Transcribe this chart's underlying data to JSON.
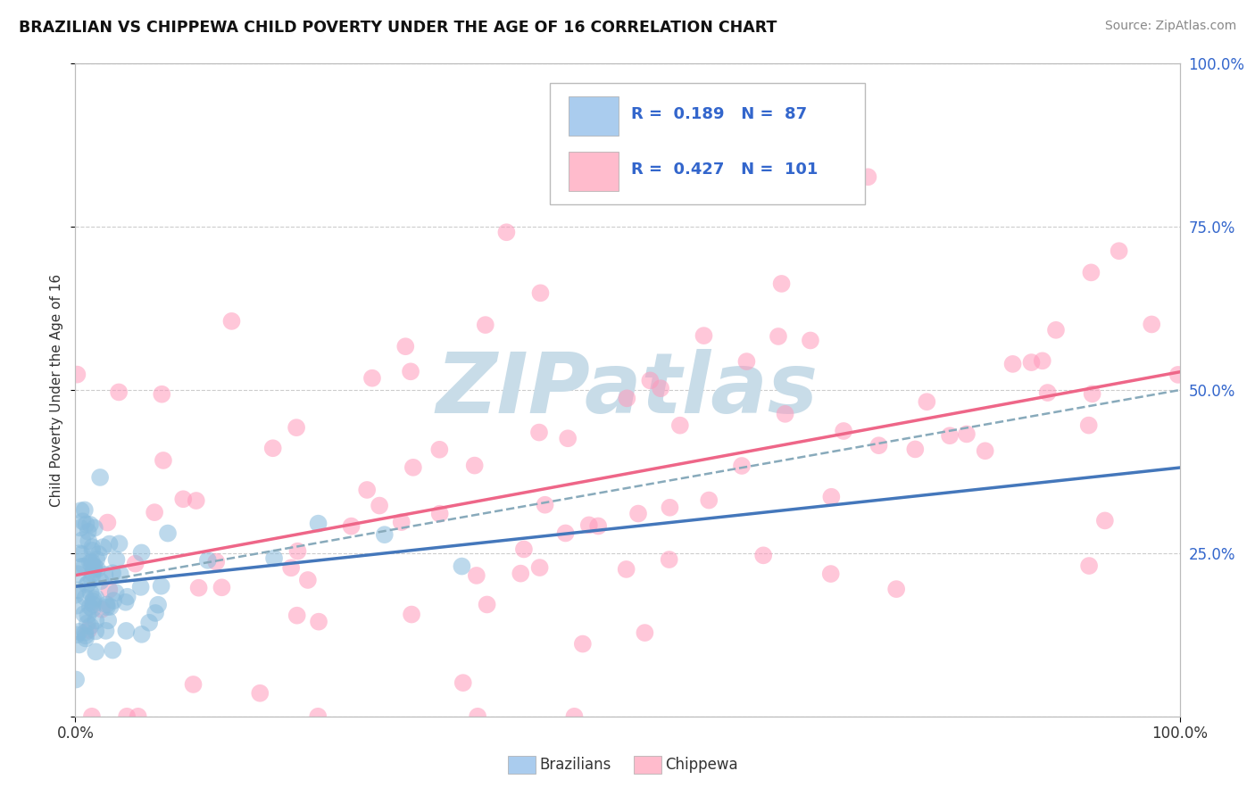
{
  "title": "BRAZILIAN VS CHIPPEWA CHILD POVERTY UNDER THE AGE OF 16 CORRELATION CHART",
  "source": "Source: ZipAtlas.com",
  "ylabel": "Child Poverty Under the Age of 16",
  "R_brazilian": 0.189,
  "N_brazilian": 87,
  "R_chippewa": 0.427,
  "N_chippewa": 101,
  "blue_scatter_color": "#88BBDD",
  "pink_scatter_color": "#FF99BB",
  "blue_legend_fill": "#AACCEE",
  "pink_legend_fill": "#FFBBCC",
  "blue_line_color": "#4477BB",
  "pink_line_color": "#EE6688",
  "blue_dash_color": "#88AABB",
  "watermark_color": "#C8DCE8",
  "background_color": "#FFFFFF",
  "grid_color": "#CCCCCC",
  "title_color": "#111111",
  "source_color": "#888888",
  "tick_label_color": "#3366CC",
  "legend_text_color": "#3366CC",
  "scatter_size": 200,
  "scatter_alpha": 0.55,
  "braz_intercept": 0.2,
  "braz_slope": 0.15,
  "chip_intercept": 0.2,
  "chip_slope": 0.35,
  "dash_intercept": 0.2,
  "dash_slope": 0.3
}
